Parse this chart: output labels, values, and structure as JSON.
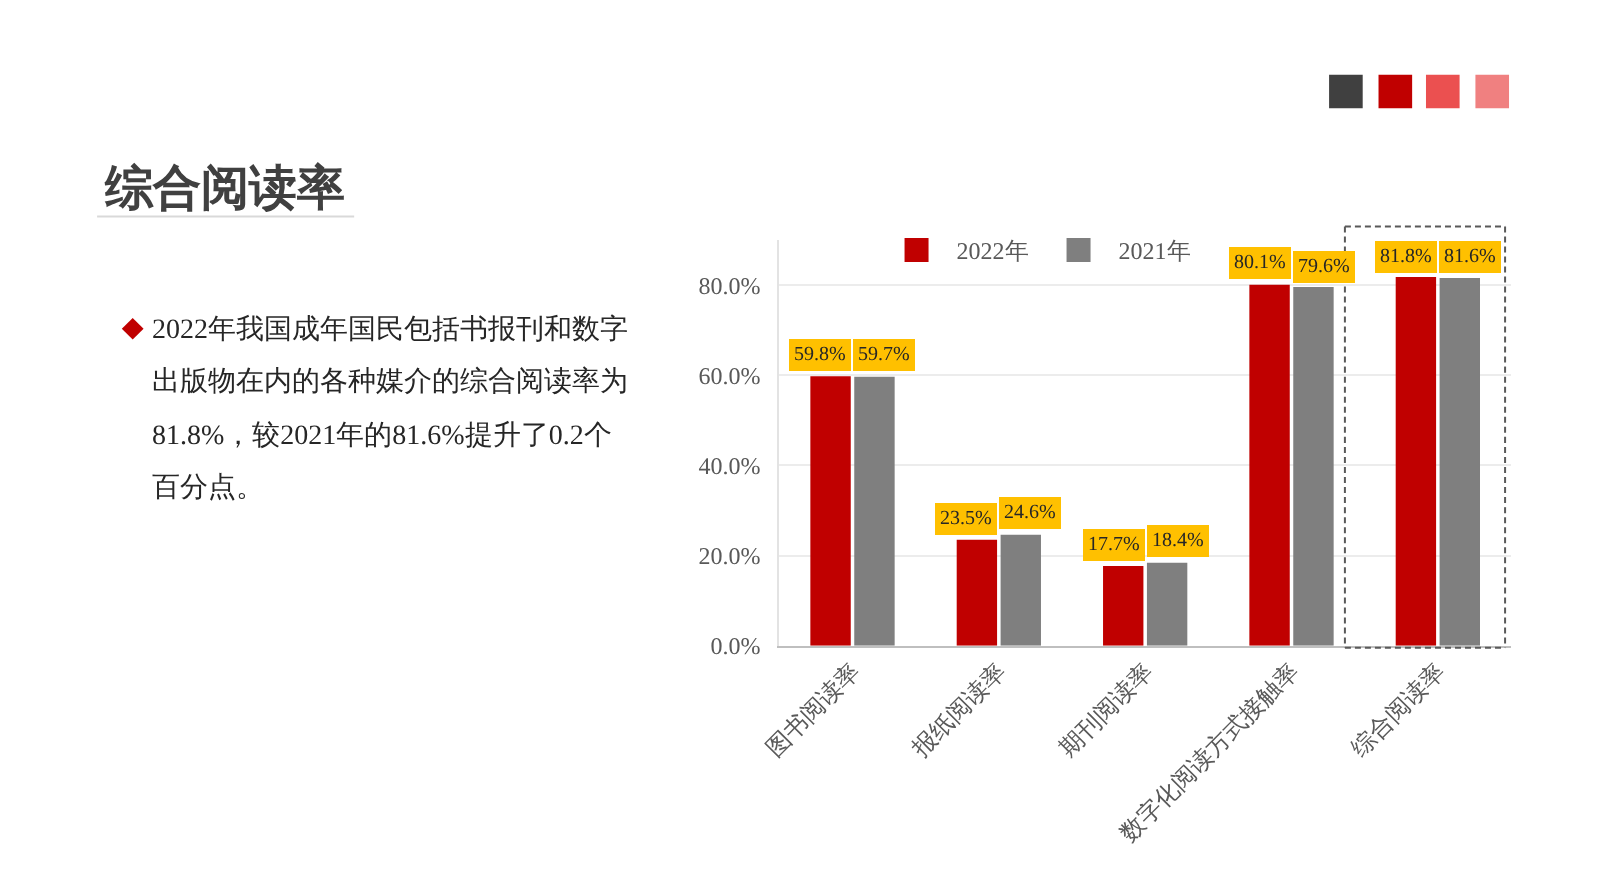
{
  "chart_data": {
    "type": "bar",
    "title": "综合阅读率",
    "categories": [
      "图书阅读率",
      "报纸阅读率",
      "期刊阅读率",
      "数字化阅读方式接触率",
      "综合阅读率"
    ],
    "series": [
      {
        "name": "2022年",
        "color": "#c00000",
        "values": [
          59.8,
          23.5,
          17.7,
          80.1,
          81.8
        ],
        "value_labels": [
          "59.8%",
          "23.5%",
          "17.7%",
          "80.1%",
          "81.8%"
        ]
      },
      {
        "name": "2021年",
        "color": "#7f7f7f",
        "values": [
          59.7,
          24.6,
          18.4,
          79.6,
          81.6
        ],
        "value_labels": [
          "59.7%",
          "24.6%",
          "18.4%",
          "79.6%",
          "81.6%"
        ]
      }
    ],
    "ylim": [
      0,
      90
    ],
    "yticks": [
      {
        "value": 0,
        "label": "0.0%"
      },
      {
        "value": 20,
        "label": "20.0%"
      },
      {
        "value": 40,
        "label": "40.0%"
      },
      {
        "value": 60,
        "label": "60.0%"
      },
      {
        "value": 80,
        "label": "80.0%"
      }
    ],
    "grid": "y",
    "legend": "top",
    "annotations": [
      "2022年我国成年国民包括书报刊和数字出版物在内的各种媒介的综合阅读率为81.8%，较2021年的81.6%提升了0.2个百分点。"
    ]
  }
}
